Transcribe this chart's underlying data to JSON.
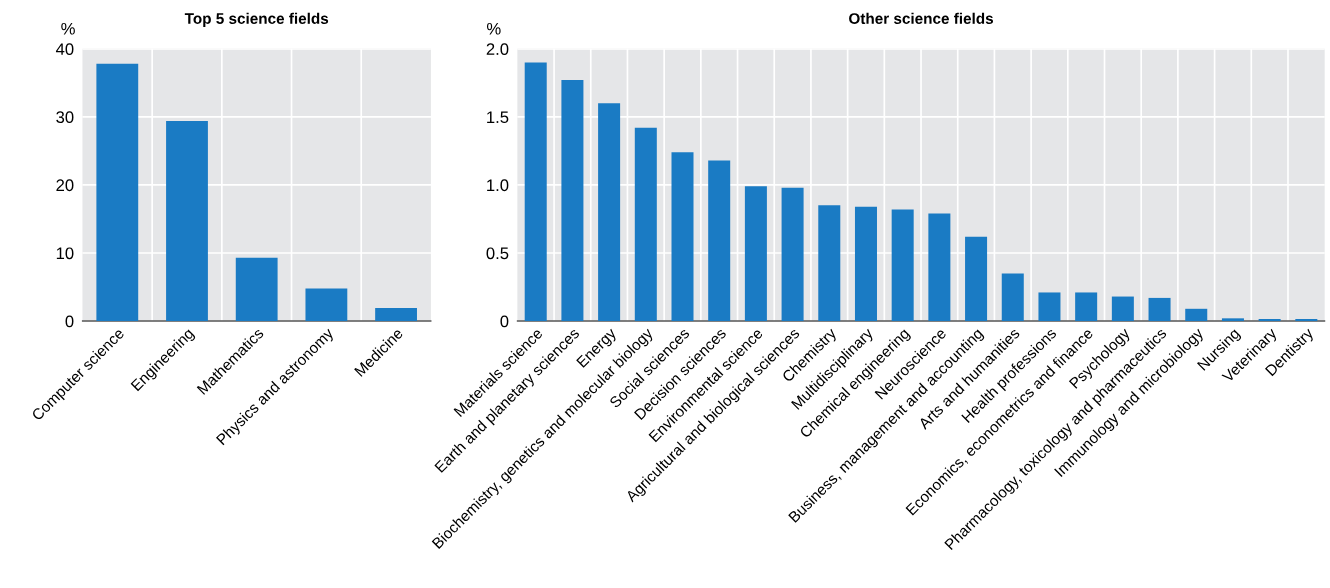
{
  "chart_data": [
    {
      "type": "bar",
      "title": "Top 5 science fields",
      "ylabel": "%",
      "categories": [
        "Computer science",
        "Engineering",
        "Mathematics",
        "Physics and astronomy",
        "Medicine"
      ],
      "values": [
        37.8,
        29.4,
        9.3,
        4.8,
        1.9
      ],
      "color": "#1a7bc4",
      "ylim": [
        0,
        40
      ],
      "yticks": [
        0,
        10,
        20,
        30,
        40
      ],
      "grid": true,
      "legend": false
    },
    {
      "type": "bar",
      "title": "Other science fields",
      "ylabel": "%",
      "categories": [
        "Materials science",
        "Earth and planetary sciences",
        "Energy",
        "Biochemistry, genetics and molecular biology",
        "Social sciences",
        "Decision sciences",
        "Environmental science",
        "Agricultural and biological sciences",
        "Chemistry",
        "Multidisciplinary",
        "Chemical engineering",
        "Neuroscience",
        "Business, management and accounting",
        "Arts and humanities",
        "Health professions",
        "Economics, econometrics and finance",
        "Psychology",
        "Pharmacology, toxicology and pharmaceutics",
        "Immunology and microbiology",
        "Nursing",
        "Veterinary",
        "Dentistry"
      ],
      "values": [
        1.9,
        1.77,
        1.6,
        1.42,
        1.24,
        1.18,
        0.99,
        0.98,
        0.85,
        0.84,
        0.82,
        0.79,
        0.62,
        0.35,
        0.21,
        0.21,
        0.18,
        0.17,
        0.09,
        0.02,
        0.015,
        0.015
      ],
      "color": "#1a7bc4",
      "ylim": [
        0,
        2.0
      ],
      "yticks": [
        0,
        {
          "value": 0.5,
          "label": "0.5"
        },
        {
          "value": 1.0,
          "label": "1.0"
        },
        {
          "value": 1.5,
          "label": "1.5"
        },
        {
          "value": 2.0,
          "label": "2.0"
        }
      ],
      "grid": true,
      "legend": false
    }
  ]
}
